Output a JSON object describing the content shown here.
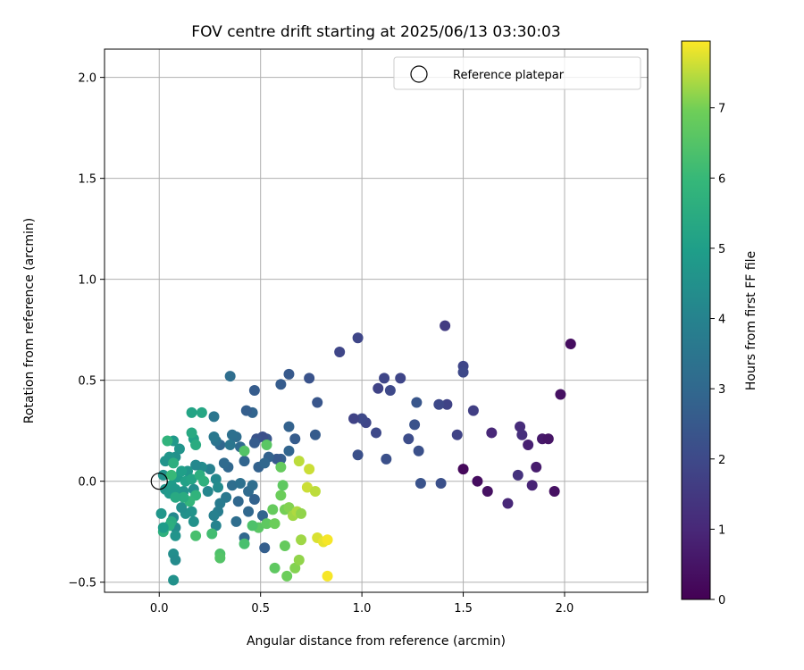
{
  "chart_data": {
    "type": "scatter",
    "title": "FOV centre drift starting at 2025/06/13 03:30:03",
    "xlabel": "Angular distance from reference (arcmin)",
    "ylabel": "Rotation from reference (arcmin)",
    "xlim": [
      -0.27,
      2.41
    ],
    "ylim": [
      -0.55,
      2.14
    ],
    "xticks": [
      0.0,
      0.5,
      1.0,
      1.5,
      2.0
    ],
    "xtick_labels": [
      "0.0",
      "0.5",
      "1.0",
      "1.5",
      "2.0"
    ],
    "yticks": [
      -0.5,
      0.0,
      0.5,
      1.0,
      1.5,
      2.0
    ],
    "ytick_labels": [
      "−0.5",
      "0.0",
      "0.5",
      "1.0",
      "1.5",
      "2.0"
    ],
    "grid": true,
    "legend": {
      "placement": "top-right",
      "entries": [
        "Reference platepar"
      ]
    },
    "reference_point": {
      "x": 0.0,
      "y": 0.0,
      "marker": "open-circle",
      "color": "#000000"
    },
    "colorbar": {
      "label": "Hours from first FF file",
      "range": [
        0,
        7.95
      ],
      "ticks": [
        0,
        1,
        2,
        3,
        4,
        5,
        6,
        7
      ],
      "tick_labels": [
        "0",
        "1",
        "2",
        "3",
        "4",
        "5",
        "6",
        "7"
      ],
      "colormap": "viridis"
    },
    "color_value": "hours",
    "points": [
      [
        2.03,
        0.68,
        0.3
      ],
      [
        1.98,
        0.43,
        0.4
      ],
      [
        1.89,
        0.21,
        0.6
      ],
      [
        1.92,
        0.21,
        0.5
      ],
      [
        1.95,
        -0.05,
        0.4
      ],
      [
        1.86,
        0.07,
        0.7
      ],
      [
        1.82,
        0.18,
        0.8
      ],
      [
        1.84,
        -0.02,
        0.9
      ],
      [
        1.78,
        0.27,
        1.1
      ],
      [
        1.79,
        0.23,
        1.2
      ],
      [
        1.77,
        0.03,
        1.3
      ],
      [
        1.72,
        -0.11,
        1.0
      ],
      [
        1.64,
        0.24,
        1.0
      ],
      [
        1.62,
        -0.05,
        0.4
      ],
      [
        1.57,
        0.0,
        0.3
      ],
      [
        1.5,
        0.06,
        0.2
      ],
      [
        1.55,
        0.35,
        1.7
      ],
      [
        1.5,
        0.57,
        1.9
      ],
      [
        1.5,
        0.54,
        2.0
      ],
      [
        1.47,
        0.23,
        1.8
      ],
      [
        1.42,
        0.38,
        1.8
      ],
      [
        1.38,
        0.38,
        2.0
      ],
      [
        1.41,
        0.77,
        1.6
      ],
      [
        1.39,
        -0.01,
        2.2
      ],
      [
        1.29,
        -0.01,
        2.3
      ],
      [
        1.28,
        0.15,
        2.2
      ],
      [
        1.27,
        0.39,
        2.4
      ],
      [
        1.26,
        0.28,
        2.3
      ],
      [
        1.23,
        0.21,
        2.1
      ],
      [
        1.19,
        0.51,
        1.9
      ],
      [
        1.14,
        0.45,
        2.0
      ],
      [
        1.11,
        0.51,
        1.9
      ],
      [
        1.12,
        0.11,
        2.2
      ],
      [
        1.08,
        0.46,
        1.8
      ],
      [
        1.07,
        0.24,
        2.0
      ],
      [
        1.02,
        0.29,
        1.9
      ],
      [
        1.0,
        0.31,
        2.0
      ],
      [
        0.98,
        0.71,
        1.9
      ],
      [
        0.96,
        0.31,
        1.8
      ],
      [
        0.98,
        0.13,
        2.2
      ],
      [
        0.89,
        0.64,
        1.9
      ],
      [
        0.78,
        0.39,
        2.4
      ],
      [
        0.77,
        0.23,
        2.6
      ],
      [
        0.74,
        0.51,
        2.3
      ],
      [
        0.67,
        0.21,
        2.6
      ],
      [
        0.64,
        0.53,
        2.5
      ],
      [
        0.64,
        0.27,
        2.8
      ],
      [
        0.6,
        0.48,
        2.6
      ],
      [
        0.6,
        0.11,
        2.7
      ],
      [
        0.64,
        0.15,
        2.9
      ],
      [
        0.58,
        0.11,
        2.5
      ],
      [
        0.53,
        0.21,
        2.4
      ],
      [
        0.54,
        0.12,
        2.8
      ],
      [
        0.51,
        0.22,
        2.2
      ],
      [
        0.48,
        0.21,
        2.3
      ],
      [
        0.47,
        0.45,
        2.6
      ],
      [
        0.46,
        0.34,
        2.9
      ],
      [
        0.43,
        0.35,
        2.7
      ],
      [
        0.47,
        0.19,
        2.6
      ],
      [
        0.49,
        0.07,
        2.8
      ],
      [
        0.52,
        0.09,
        3.0
      ],
      [
        0.42,
        0.1,
        2.9
      ],
      [
        0.4,
        0.17,
        3.1
      ],
      [
        0.38,
        0.22,
        3.2
      ],
      [
        0.36,
        0.23,
        3.3
      ],
      [
        0.35,
        0.52,
        3.2
      ],
      [
        0.34,
        0.07,
        3.0
      ],
      [
        0.32,
        0.09,
        3.1
      ],
      [
        0.3,
        0.18,
        3.0
      ],
      [
        0.28,
        0.2,
        3.4
      ],
      [
        0.27,
        0.32,
        3.5
      ],
      [
        0.27,
        0.22,
        3.6
      ],
      [
        0.35,
        0.18,
        3.5
      ],
      [
        0.36,
        -0.02,
        3.2
      ],
      [
        0.4,
        -0.01,
        3.3
      ],
      [
        0.39,
        -0.1,
        3.0
      ],
      [
        0.44,
        -0.05,
        3.1
      ],
      [
        0.46,
        -0.02,
        3.2
      ],
      [
        0.44,
        -0.15,
        3.0
      ],
      [
        0.47,
        -0.09,
        2.8
      ],
      [
        0.51,
        -0.17,
        2.9
      ],
      [
        0.52,
        -0.33,
        2.7
      ],
      [
        0.42,
        -0.28,
        3.0
      ],
      [
        0.38,
        -0.2,
        3.2
      ],
      [
        0.33,
        -0.08,
        3.6
      ],
      [
        0.3,
        -0.11,
        3.7
      ],
      [
        0.29,
        -0.15,
        3.8
      ],
      [
        0.27,
        -0.17,
        3.9
      ],
      [
        0.28,
        -0.22,
        4.0
      ],
      [
        0.24,
        -0.05,
        4.1
      ],
      [
        0.25,
        0.06,
        3.9
      ],
      [
        0.28,
        0.01,
        4.2
      ],
      [
        0.29,
        -0.03,
        4.3
      ],
      [
        0.21,
        0.07,
        4.3
      ],
      [
        0.18,
        0.08,
        4.2
      ],
      [
        0.17,
        -0.04,
        4.4
      ],
      [
        0.17,
        -0.2,
        4.5
      ],
      [
        0.16,
        -0.15,
        4.6
      ],
      [
        0.13,
        -0.16,
        4.5
      ],
      [
        0.11,
        -0.13,
        4.4
      ],
      [
        0.12,
        -0.05,
        4.6
      ],
      [
        0.14,
        0.05,
        4.7
      ],
      [
        0.1,
        0.16,
        4.6
      ],
      [
        0.08,
        0.12,
        4.5
      ],
      [
        0.07,
        0.2,
        4.8
      ],
      [
        0.05,
        0.12,
        4.7
      ],
      [
        0.03,
        0.1,
        4.6
      ],
      [
        0.02,
        0.03,
        4.5
      ],
      [
        0.03,
        -0.04,
        4.6
      ],
      [
        0.05,
        -0.06,
        4.8
      ],
      [
        0.06,
        -0.02,
        4.9
      ],
      [
        0.08,
        -0.04,
        4.8
      ],
      [
        0.09,
        0.02,
        4.9
      ],
      [
        0.11,
        0.05,
        5.0
      ],
      [
        0.13,
        0.0,
        5.1
      ],
      [
        0.16,
        0.01,
        5.2
      ],
      [
        0.17,
        0.21,
        5.1
      ],
      [
        0.16,
        0.34,
        5.2
      ],
      [
        0.21,
        0.34,
        5.3
      ],
      [
        0.16,
        0.24,
        5.4
      ],
      [
        0.18,
        0.18,
        5.5
      ],
      [
        0.2,
        0.03,
        5.6
      ],
      [
        0.22,
        0.0,
        5.7
      ],
      [
        0.18,
        -0.07,
        5.8
      ],
      [
        0.15,
        -0.1,
        5.9
      ],
      [
        0.12,
        -0.08,
        5.5
      ],
      [
        0.08,
        -0.08,
        5.4
      ],
      [
        0.07,
        -0.18,
        4.2
      ],
      [
        0.08,
        -0.23,
        4.3
      ],
      [
        0.06,
        -0.2,
        5.5
      ],
      [
        0.05,
        -0.22,
        5.6
      ],
      [
        0.02,
        -0.25,
        5.7
      ],
      [
        0.02,
        -0.23,
        4.9
      ],
      [
        0.01,
        -0.16,
        4.7
      ],
      [
        0.08,
        -0.27,
        4.6
      ],
      [
        0.07,
        -0.36,
        4.4
      ],
      [
        0.08,
        -0.39,
        4.3
      ],
      [
        0.07,
        -0.49,
        4.5
      ],
      [
        0.06,
        0.03,
        6.0
      ],
      [
        0.07,
        0.09,
        5.6
      ],
      [
        0.04,
        0.2,
        5.8
      ],
      [
        0.26,
        -0.26,
        6.2
      ],
      [
        0.18,
        -0.27,
        6.3
      ],
      [
        0.3,
        -0.36,
        6.4
      ],
      [
        0.3,
        -0.38,
        6.5
      ],
      [
        0.42,
        -0.31,
        6.3
      ],
      [
        0.42,
        0.15,
        6.5
      ],
      [
        0.53,
        0.18,
        6.6
      ],
      [
        0.6,
        0.07,
        6.8
      ],
      [
        0.6,
        -0.07,
        6.9
      ],
      [
        0.61,
        -0.02,
        6.7
      ],
      [
        0.56,
        -0.14,
        6.8
      ],
      [
        0.49,
        -0.23,
        6.6
      ],
      [
        0.53,
        -0.21,
        6.7
      ],
      [
        0.57,
        -0.21,
        6.9
      ],
      [
        0.62,
        -0.14,
        7.0
      ],
      [
        0.64,
        -0.13,
        7.1
      ],
      [
        0.62,
        -0.32,
        6.8
      ],
      [
        0.57,
        -0.43,
        6.7
      ],
      [
        0.63,
        -0.47,
        6.9
      ],
      [
        0.67,
        -0.43,
        7.1
      ],
      [
        0.69,
        -0.39,
        7.2
      ],
      [
        0.66,
        -0.17,
        7.3
      ],
      [
        0.68,
        -0.15,
        7.4
      ],
      [
        0.7,
        -0.16,
        7.2
      ],
      [
        0.7,
        -0.29,
        7.3
      ],
      [
        0.74,
        0.06,
        7.6
      ],
      [
        0.69,
        0.1,
        7.5
      ],
      [
        0.73,
        -0.03,
        7.6
      ],
      [
        0.77,
        -0.05,
        7.5
      ],
      [
        0.78,
        -0.28,
        7.7
      ],
      [
        0.81,
        -0.3,
        7.8
      ],
      [
        0.83,
        -0.29,
        7.9
      ],
      [
        0.83,
        -0.47,
        7.9
      ],
      [
        0.46,
        -0.22,
        6.4
      ]
    ]
  }
}
